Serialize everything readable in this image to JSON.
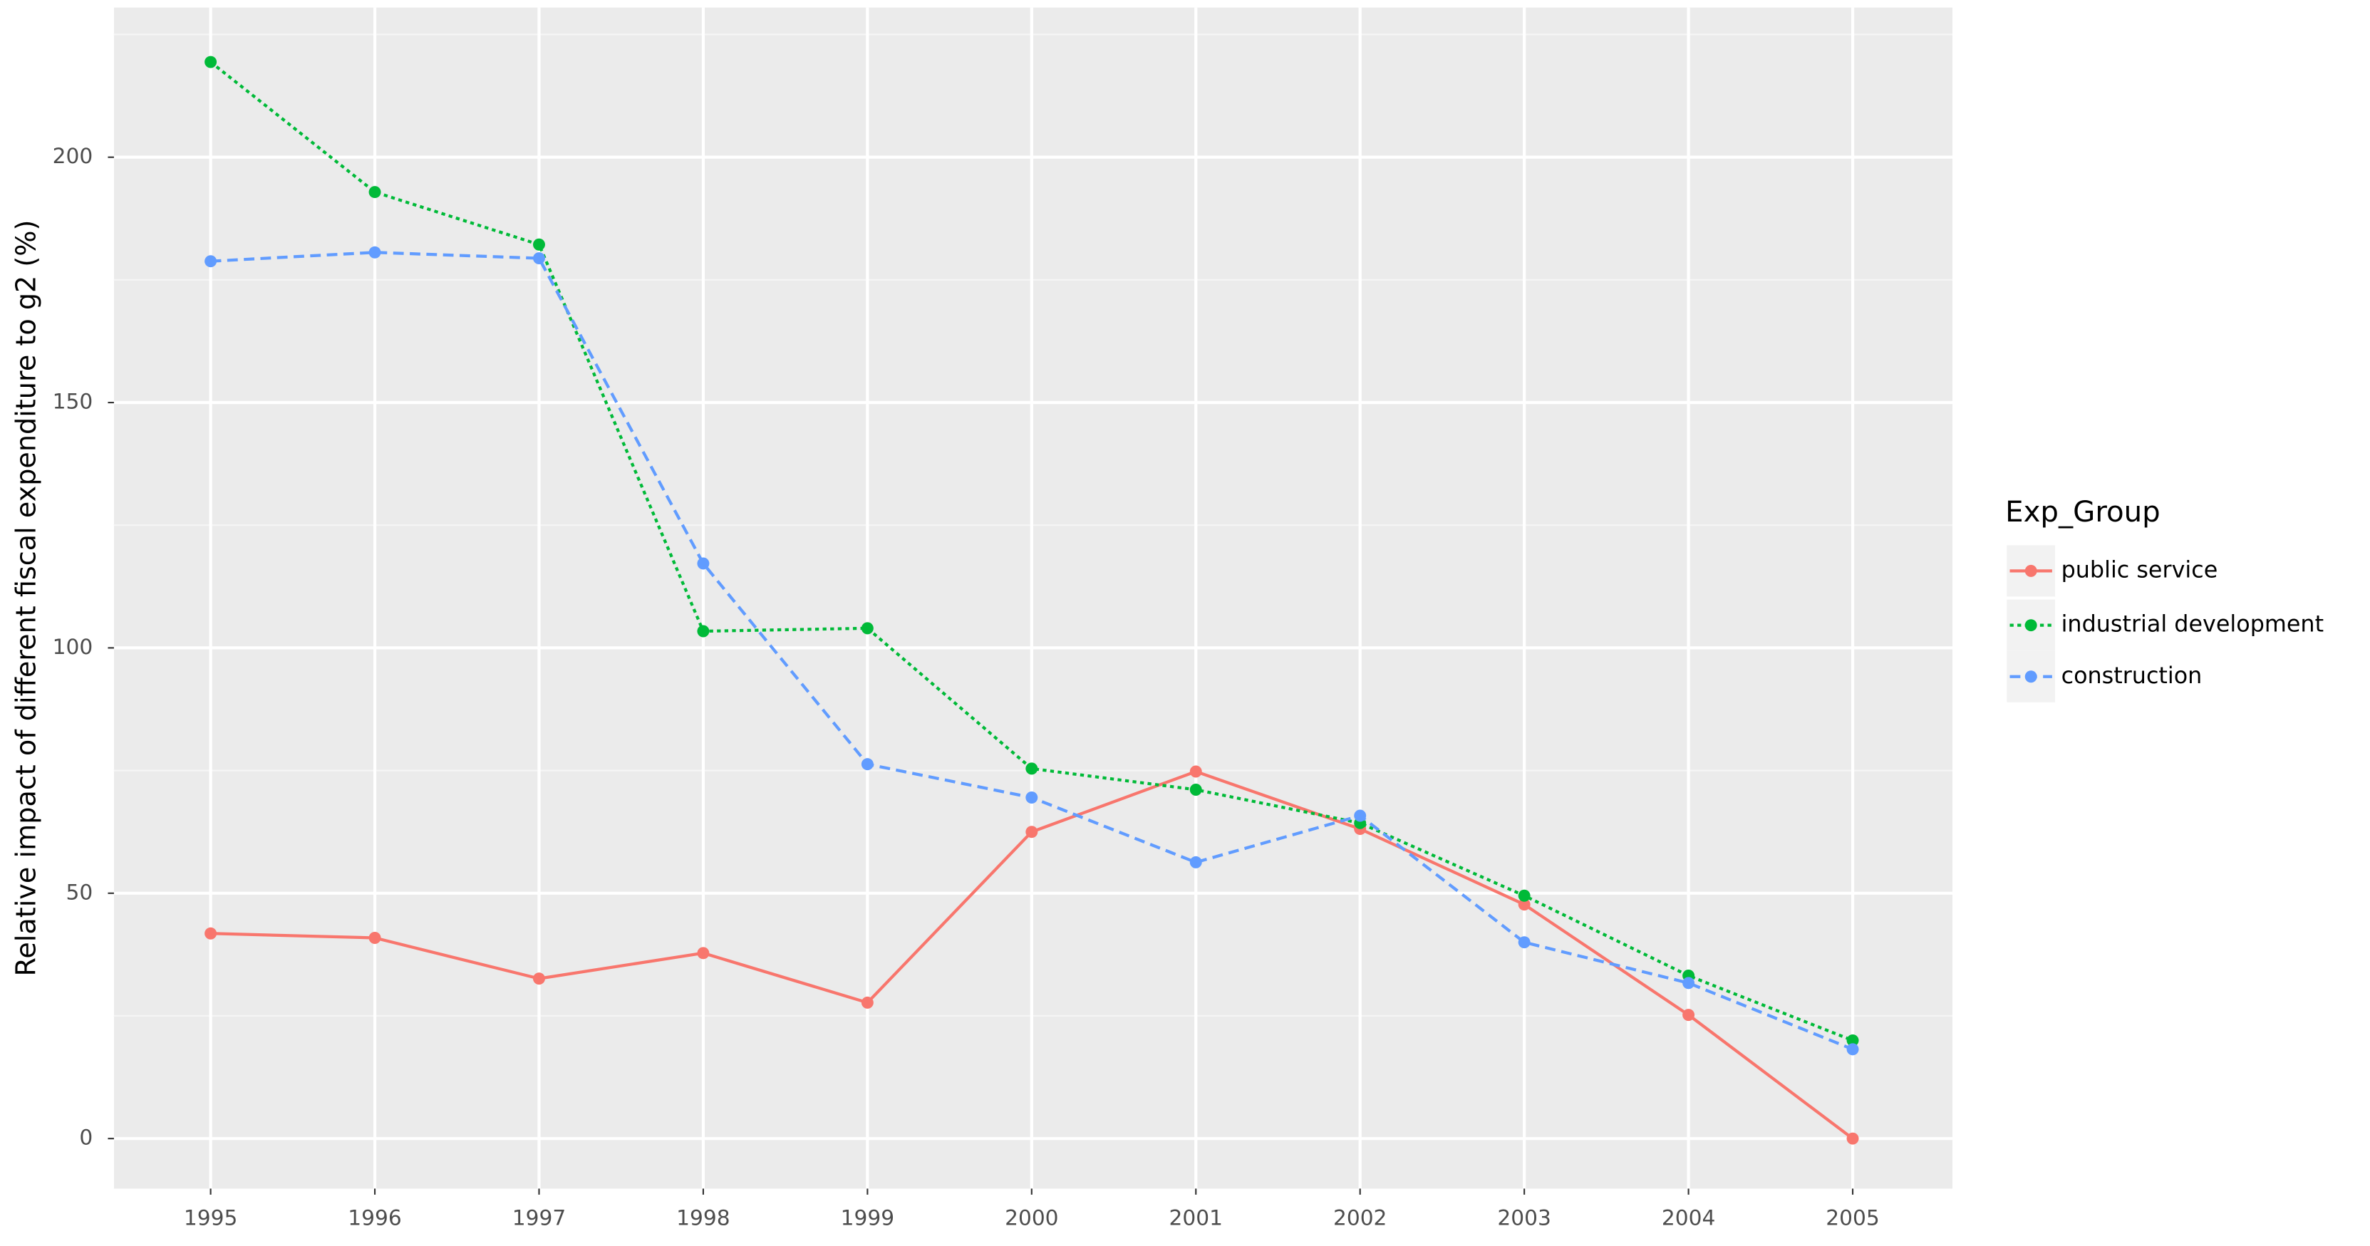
{
  "chart_data": {
    "type": "line",
    "y_label": "Relative impact of different fiscal expenditure to g2   (%)",
    "legend_title": "Exp_Group",
    "categories": [
      "1995",
      "1996",
      "1997",
      "1998",
      "1999",
      "2000",
      "2001",
      "2002",
      "2003",
      "2004",
      "2005"
    ],
    "series": [
      {
        "name": "public service",
        "color": "#F8766D",
        "dash": "solid",
        "values": [
          41.8,
          40.9,
          32.6,
          37.8,
          27.7,
          62.5,
          74.8,
          63.1,
          47.7,
          25.2,
          0
        ]
      },
      {
        "name": "industrial development",
        "color": "#00BA38",
        "dash": "dotted",
        "values": [
          219.4,
          192.9,
          182.2,
          103.4,
          104,
          75.4,
          71.1,
          64.3,
          49.5,
          33.2,
          20
        ]
      },
      {
        "name": "construction",
        "color": "#619CFF",
        "dash": "dashed",
        "values": [
          178.8,
          180.6,
          179.4,
          117.2,
          76.3,
          69.5,
          56.3,
          65.8,
          40,
          31.7,
          18.2
        ]
      }
    ],
    "ylim": [
      -10.2,
      230.5
    ],
    "yticks": [
      0,
      50,
      100,
      150,
      200
    ],
    "grid": true,
    "legend_position": "right"
  }
}
